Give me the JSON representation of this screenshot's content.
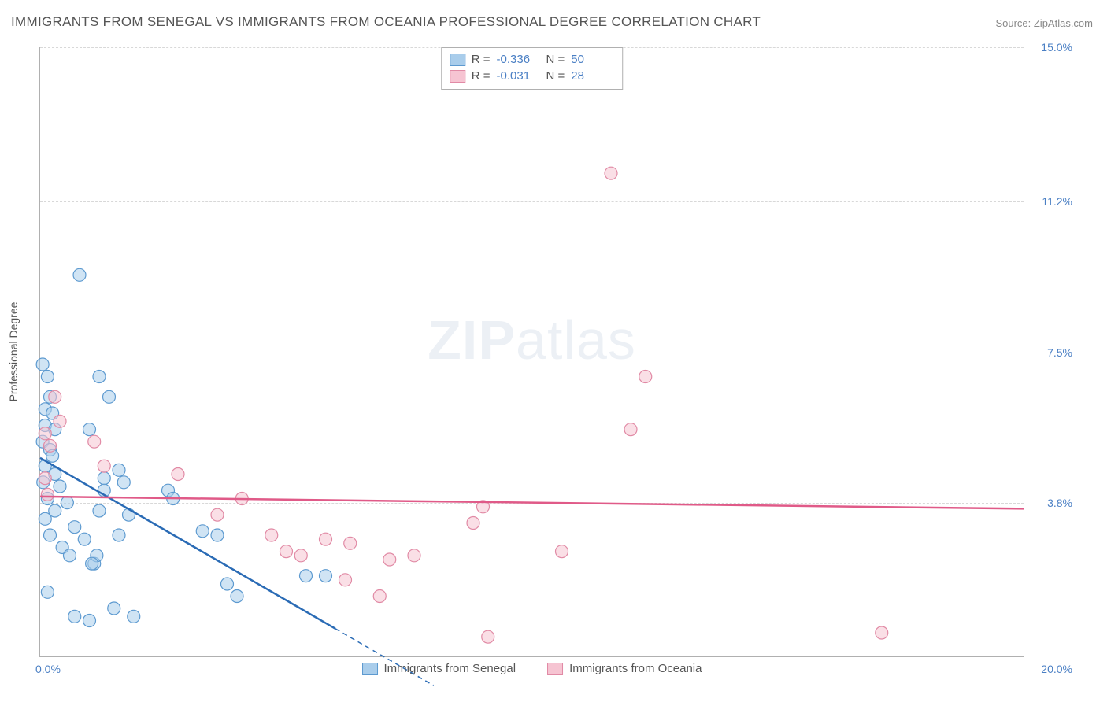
{
  "title": "IMMIGRANTS FROM SENEGAL VS IMMIGRANTS FROM OCEANIA PROFESSIONAL DEGREE CORRELATION CHART",
  "source_prefix": "Source: ",
  "source_name": "ZipAtlas.com",
  "watermark_a": "ZIP",
  "watermark_b": "atlas",
  "y_axis_title": "Professional Degree",
  "chart": {
    "type": "scatter",
    "xlim": [
      0.0,
      20.0
    ],
    "ylim": [
      0.0,
      15.0
    ],
    "x_min_label": "0.0%",
    "x_max_label": "20.0%",
    "y_ticks": [
      {
        "value": 3.8,
        "label": "3.8%"
      },
      {
        "value": 7.5,
        "label": "7.5%"
      },
      {
        "value": 11.2,
        "label": "11.2%"
      },
      {
        "value": 15.0,
        "label": "15.0%"
      }
    ],
    "grid_color": "#d8d8d8",
    "background_color": "#ffffff",
    "marker_radius": 8,
    "marker_opacity": 0.55,
    "series": [
      {
        "name": "Immigrants from Senegal",
        "color_fill": "#a9cdeb",
        "color_stroke": "#5d9ad0",
        "line_color": "#2a6bb5",
        "r_label": "R =",
        "r_value": "-0.336",
        "n_label": "N =",
        "n_value": "50",
        "regression": {
          "x1": 0.0,
          "y1": 4.9,
          "x2_solid": 6.0,
          "y2_solid": 0.7,
          "x2_dashed": 8.0,
          "y2_dashed": -0.7
        },
        "points": [
          [
            0.05,
            7.2
          ],
          [
            0.15,
            6.9
          ],
          [
            0.2,
            6.4
          ],
          [
            0.1,
            6.1
          ],
          [
            0.25,
            6.0
          ],
          [
            0.1,
            5.7
          ],
          [
            0.3,
            5.6
          ],
          [
            0.05,
            5.3
          ],
          [
            0.2,
            5.1
          ],
          [
            0.1,
            4.7
          ],
          [
            0.3,
            4.5
          ],
          [
            0.06,
            4.3
          ],
          [
            0.4,
            4.2
          ],
          [
            0.15,
            3.9
          ],
          [
            0.55,
            3.8
          ],
          [
            0.3,
            3.6
          ],
          [
            0.1,
            3.4
          ],
          [
            0.7,
            3.2
          ],
          [
            0.2,
            3.0
          ],
          [
            0.9,
            2.9
          ],
          [
            0.45,
            2.7
          ],
          [
            0.6,
            2.5
          ],
          [
            1.1,
            2.3
          ],
          [
            0.15,
            1.6
          ],
          [
            0.8,
            9.4
          ],
          [
            1.2,
            6.9
          ],
          [
            1.4,
            6.4
          ],
          [
            1.0,
            5.6
          ],
          [
            1.6,
            4.6
          ],
          [
            1.3,
            4.4
          ],
          [
            1.7,
            4.3
          ],
          [
            1.3,
            4.1
          ],
          [
            1.2,
            3.6
          ],
          [
            1.8,
            3.5
          ],
          [
            1.6,
            3.0
          ],
          [
            1.15,
            2.5
          ],
          [
            1.05,
            2.3
          ],
          [
            1.5,
            1.2
          ],
          [
            1.9,
            1.0
          ],
          [
            0.7,
            1.0
          ],
          [
            1.0,
            0.9
          ],
          [
            2.6,
            4.1
          ],
          [
            2.7,
            3.9
          ],
          [
            3.3,
            3.1
          ],
          [
            3.8,
            1.8
          ],
          [
            3.6,
            3.0
          ],
          [
            4.0,
            1.5
          ],
          [
            5.4,
            2.0
          ],
          [
            5.8,
            2.0
          ],
          [
            0.25,
            4.95
          ]
        ]
      },
      {
        "name": "Immigrants from Oceania",
        "color_fill": "#f6c4d2",
        "color_stroke": "#e18aa5",
        "line_color": "#e05a88",
        "r_label": "R =",
        "r_value": "-0.031",
        "n_label": "N =",
        "n_value": "28",
        "regression": {
          "x1": 0.0,
          "y1": 3.95,
          "x2_solid": 20.0,
          "y2_solid": 3.65,
          "x2_dashed": 20.0,
          "y2_dashed": 3.65
        },
        "points": [
          [
            0.3,
            6.4
          ],
          [
            0.1,
            5.5
          ],
          [
            0.2,
            5.2
          ],
          [
            0.1,
            4.4
          ],
          [
            1.3,
            4.7
          ],
          [
            1.1,
            5.3
          ],
          [
            2.8,
            4.5
          ],
          [
            3.6,
            3.5
          ],
          [
            4.1,
            3.9
          ],
          [
            5.0,
            2.6
          ],
          [
            5.3,
            2.5
          ],
          [
            4.7,
            3.0
          ],
          [
            5.8,
            2.9
          ],
          [
            6.3,
            2.8
          ],
          [
            6.2,
            1.9
          ],
          [
            7.1,
            2.4
          ],
          [
            7.6,
            2.5
          ],
          [
            6.9,
            1.5
          ],
          [
            8.8,
            3.3
          ],
          [
            9.0,
            3.7
          ],
          [
            9.1,
            0.5
          ],
          [
            10.6,
            2.6
          ],
          [
            11.6,
            11.9
          ],
          [
            12.0,
            5.6
          ],
          [
            12.3,
            6.9
          ],
          [
            17.1,
            0.6
          ],
          [
            0.15,
            4.0
          ],
          [
            0.4,
            5.8
          ]
        ]
      }
    ]
  }
}
